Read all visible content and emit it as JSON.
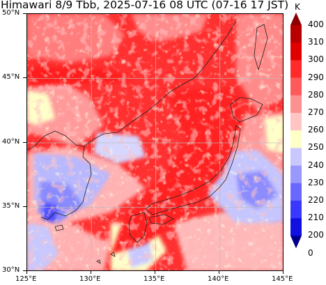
{
  "title": "Himawari 8/9 Tbb, 2025-07-16 08 UTC (07-16 17 JST)",
  "map": {
    "type": "satellite brightness temperature map",
    "lon_range": [
      125,
      145
    ],
    "lat_range": [
      30,
      50
    ],
    "grid": true,
    "coastlines": true,
    "x_ticks": [
      "125°E",
      "130°E",
      "135°E",
      "140°E",
      "145°E"
    ],
    "y_ticks": [
      "50°N",
      "45°N",
      "40°N",
      "35°N",
      "30°N"
    ]
  },
  "colorbar": {
    "unit": "K",
    "labels": [
      "400",
      "310",
      "300",
      "290",
      "280",
      "270",
      "260",
      "250",
      "240",
      "230",
      "220",
      "210",
      "200",
      "0"
    ],
    "colors": [
      "#8b0000",
      "#b80000",
      "#e00000",
      "#ff2a2a",
      "#ff5a5a",
      "#ff9090",
      "#ffc4c4",
      "#ffffc8",
      "#c8c8ff",
      "#9898ff",
      "#6868ff",
      "#3838ff",
      "#1010e0",
      "#00008b"
    ]
  }
}
